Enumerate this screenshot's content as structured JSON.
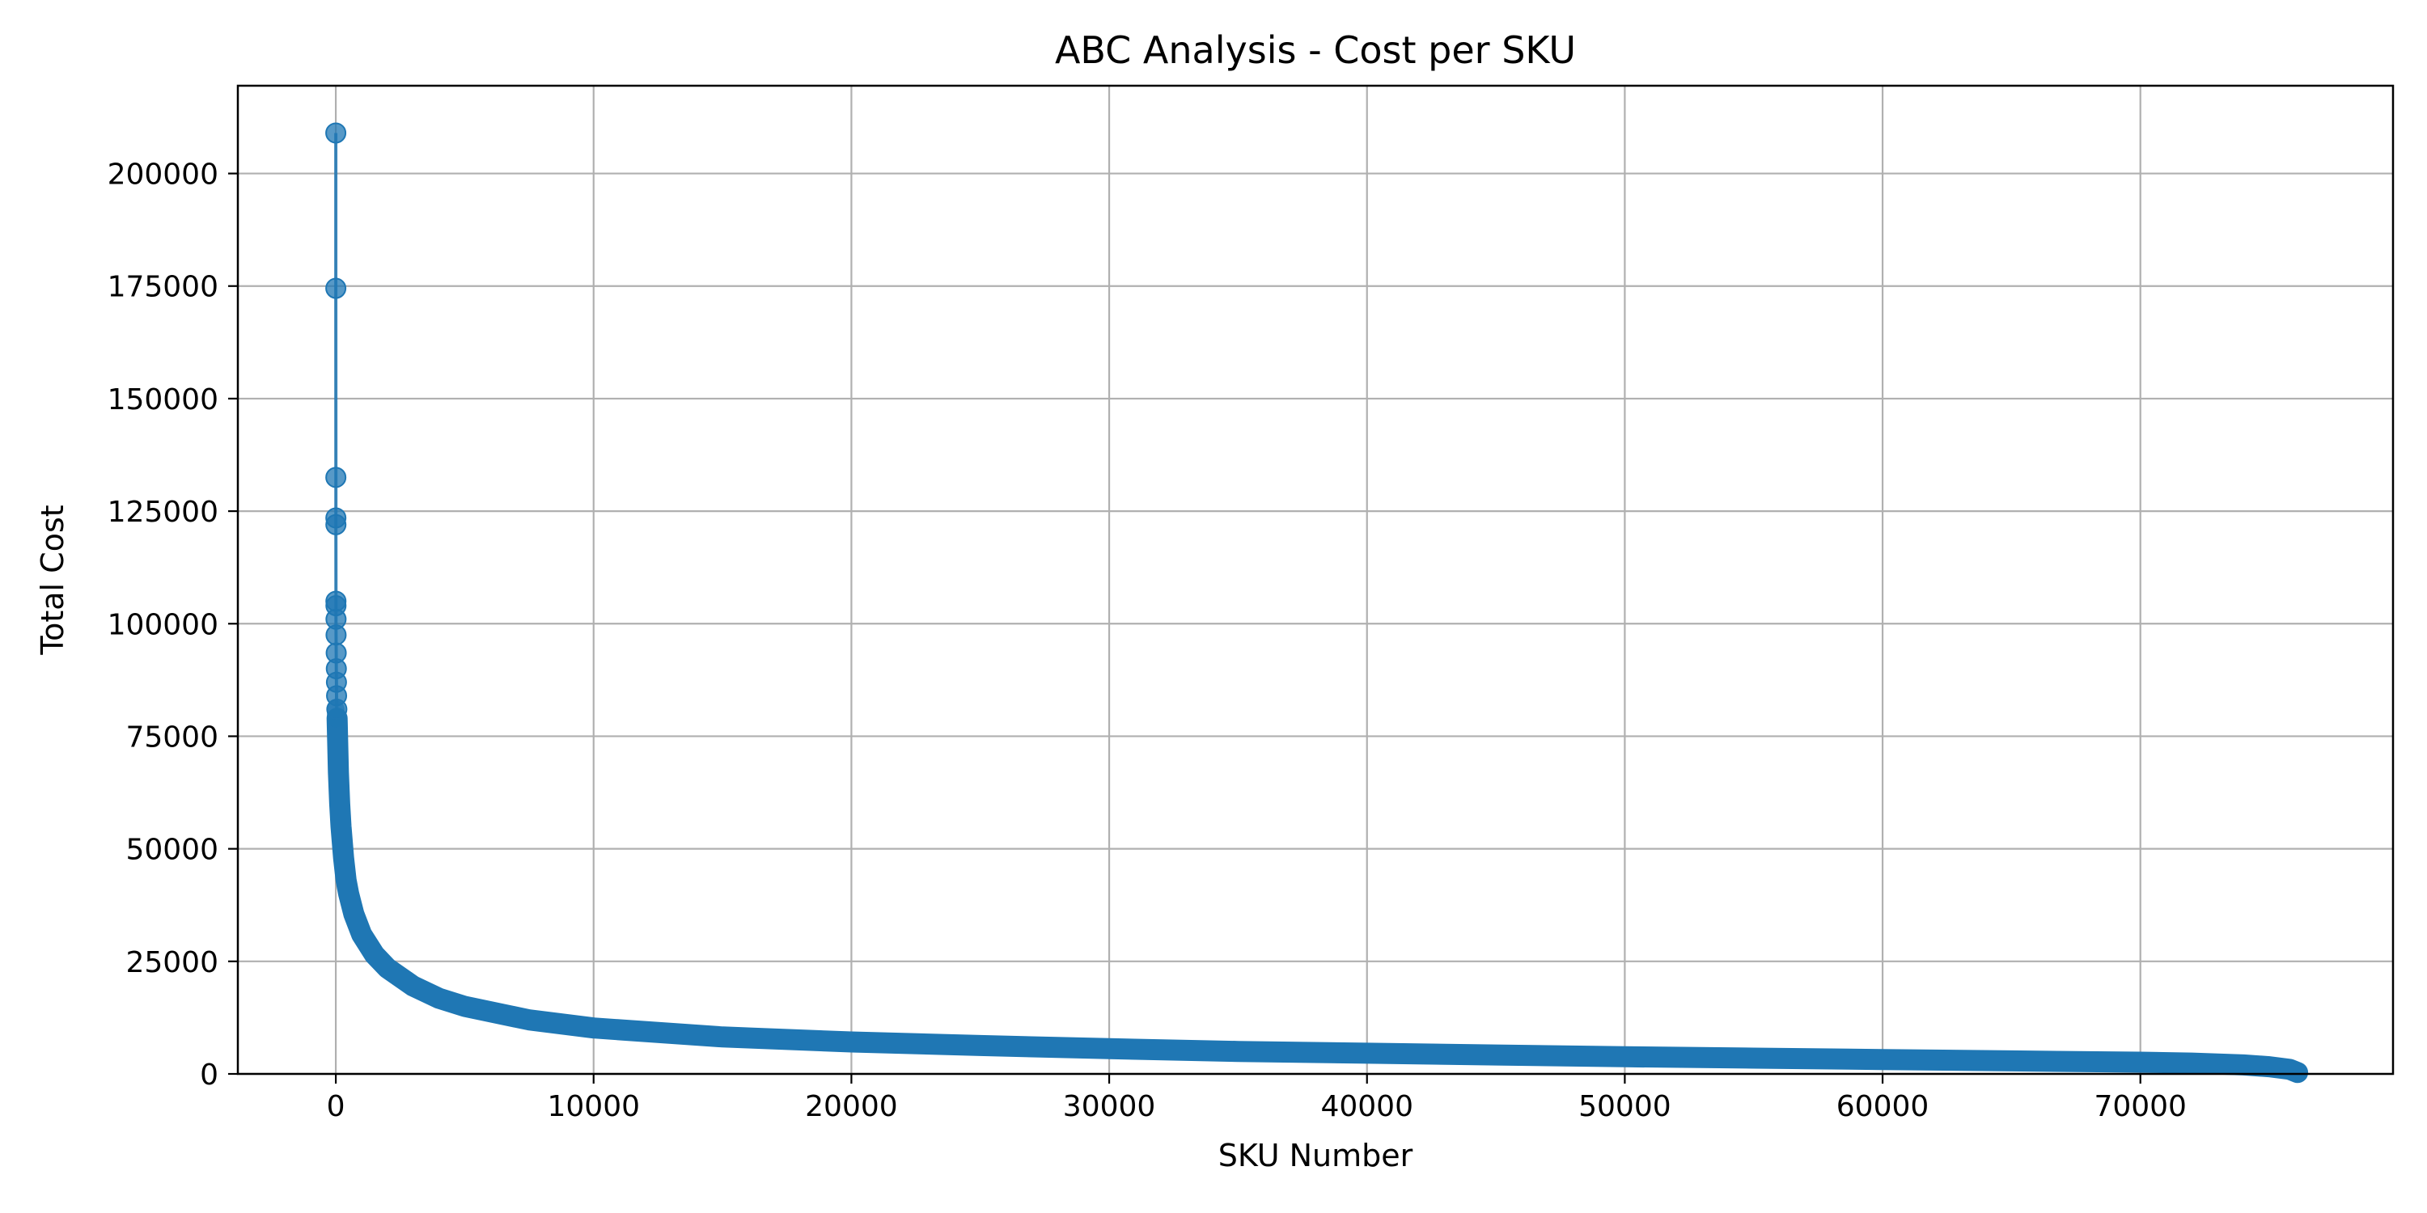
{
  "chart_data": {
    "type": "line",
    "title": "ABC Analysis - Cost per SKU",
    "xlabel": "SKU Number",
    "ylabel": "Total Cost",
    "xlim": [
      -3800,
      79800
    ],
    "ylim": [
      0,
      219500
    ],
    "xticks": [
      0,
      10000,
      20000,
      30000,
      40000,
      50000,
      60000,
      70000
    ],
    "yticks": [
      0,
      25000,
      50000,
      75000,
      100000,
      125000,
      150000,
      175000,
      200000
    ],
    "grid": true,
    "legend": "none",
    "series": [
      {
        "color": "#1f77b4",
        "marker": "circle",
        "highlighted_points": [
          {
            "x": 0,
            "y": 209000
          },
          {
            "x": 1,
            "y": 174500
          },
          {
            "x": 2,
            "y": 132500
          },
          {
            "x": 3,
            "y": 123500
          },
          {
            "x": 4,
            "y": 122000
          },
          {
            "x": 5,
            "y": 105000
          },
          {
            "x": 6,
            "y": 104000
          },
          {
            "x": 8,
            "y": 101000
          },
          {
            "x": 10,
            "y": 97500
          },
          {
            "x": 15,
            "y": 93500
          },
          {
            "x": 20,
            "y": 90000
          },
          {
            "x": 25,
            "y": 87000
          },
          {
            "x": 30,
            "y": 84000
          },
          {
            "x": 40,
            "y": 81000
          }
        ],
        "curve": [
          {
            "x": 50,
            "y": 79000
          },
          {
            "x": 100,
            "y": 67000
          },
          {
            "x": 150,
            "y": 60000
          },
          {
            "x": 200,
            "y": 55000
          },
          {
            "x": 300,
            "y": 48000
          },
          {
            "x": 400,
            "y": 43000
          },
          {
            "x": 500,
            "y": 40000
          },
          {
            "x": 700,
            "y": 35500
          },
          {
            "x": 1000,
            "y": 31000
          },
          {
            "x": 1500,
            "y": 26500
          },
          {
            "x": 2000,
            "y": 23500
          },
          {
            "x": 3000,
            "y": 19500
          },
          {
            "x": 4000,
            "y": 16800
          },
          {
            "x": 5000,
            "y": 15000
          },
          {
            "x": 7500,
            "y": 12000
          },
          {
            "x": 10000,
            "y": 10200
          },
          {
            "x": 15000,
            "y": 8200
          },
          {
            "x": 20000,
            "y": 7100
          },
          {
            "x": 25000,
            "y": 6300
          },
          {
            "x": 30000,
            "y": 5600
          },
          {
            "x": 35000,
            "y": 5000
          },
          {
            "x": 40000,
            "y": 4600
          },
          {
            "x": 45000,
            "y": 4200
          },
          {
            "x": 50000,
            "y": 3800
          },
          {
            "x": 55000,
            "y": 3500
          },
          {
            "x": 60000,
            "y": 3200
          },
          {
            "x": 65000,
            "y": 2900
          },
          {
            "x": 70000,
            "y": 2600
          },
          {
            "x": 72000,
            "y": 2400
          },
          {
            "x": 74000,
            "y": 2000
          },
          {
            "x": 75000,
            "y": 1600
          },
          {
            "x": 75800,
            "y": 1000
          },
          {
            "x": 76100,
            "y": 300
          }
        ]
      }
    ]
  }
}
